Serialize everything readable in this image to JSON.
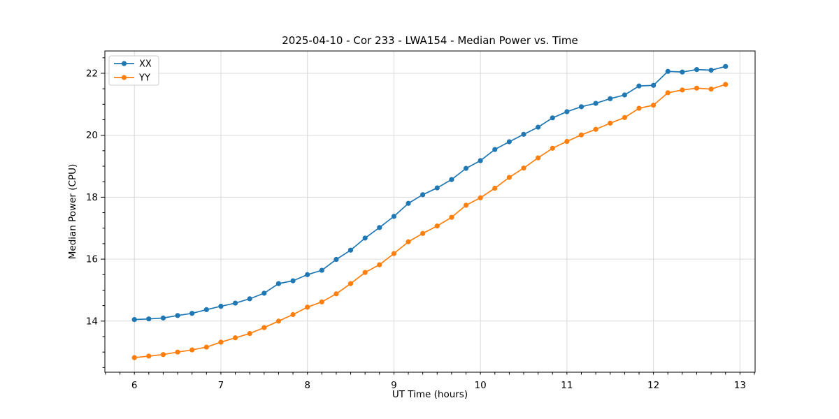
{
  "figure": {
    "title": "2025-04-10 - Cor 233 - LWA154 - Median Power vs. Time",
    "xlabel": "UT Time (hours)",
    "ylabel": "Median Power (CPU)"
  },
  "chart_data": {
    "type": "line",
    "title": "2025-04-10 - Cor 233 - LWA154 - Median Power vs. Time",
    "xlabel": "UT Time (hours)",
    "ylabel": "Median Power (CPU)",
    "x": [
      6.0,
      6.1667,
      6.3333,
      6.5,
      6.6667,
      6.8333,
      7.0,
      7.1667,
      7.3333,
      7.5,
      7.6667,
      7.8333,
      8.0,
      8.1667,
      8.3333,
      8.5,
      8.6667,
      8.8333,
      9.0,
      9.1667,
      9.3333,
      9.5,
      9.6667,
      9.8333,
      10.0,
      10.1667,
      10.3333,
      10.5,
      10.6667,
      10.8333,
      11.0,
      11.1667,
      11.3333,
      11.5,
      11.6667,
      11.8333,
      12.0,
      12.1667,
      12.3333,
      12.5,
      12.6667,
      12.8333
    ],
    "series": [
      {
        "name": "XX",
        "color": "#1f77b4",
        "marker": "circle",
        "values": [
          14.05,
          14.07,
          14.1,
          14.18,
          14.25,
          14.37,
          14.48,
          14.58,
          14.72,
          14.9,
          15.21,
          15.3,
          15.5,
          15.64,
          15.99,
          16.29,
          16.68,
          17.02,
          17.38,
          17.8,
          18.08,
          18.3,
          18.57,
          18.93,
          19.18,
          19.54,
          19.79,
          20.03,
          20.26,
          20.56,
          20.76,
          20.92,
          21.03,
          21.18,
          21.3,
          21.59,
          21.61,
          22.06,
          22.04,
          22.12,
          22.1,
          22.22
        ]
      },
      {
        "name": "YY",
        "color": "#ff7f0e",
        "marker": "circle",
        "values": [
          12.82,
          12.87,
          12.92,
          13.0,
          13.07,
          13.16,
          13.32,
          13.46,
          13.6,
          13.79,
          14.0,
          14.21,
          14.45,
          14.62,
          14.88,
          15.21,
          15.57,
          15.82,
          16.18,
          16.56,
          16.83,
          17.07,
          17.35,
          17.74,
          17.98,
          18.29,
          18.64,
          18.94,
          19.27,
          19.58,
          19.8,
          20.01,
          20.19,
          20.39,
          20.57,
          20.87,
          20.97,
          21.37,
          21.46,
          21.52,
          21.49,
          21.64
        ]
      }
    ],
    "xlim": [
      5.659,
      13.175
    ],
    "ylim": [
      12.35,
      22.72
    ],
    "xticks": [
      6,
      7,
      8,
      9,
      10,
      11,
      12,
      13
    ],
    "yticks": [
      14,
      16,
      18,
      20,
      22
    ],
    "x_minor_step": 0.166667,
    "y_minor_step": 0.5,
    "grid": true,
    "legend": {
      "position": "upper left",
      "entries": [
        "XX",
        "YY"
      ]
    }
  },
  "colors": {
    "series_xx": "#1f77b4",
    "series_yy": "#ff7f0e",
    "grid": "#d9d9d9",
    "axis": "#000000",
    "legend_border": "#cccccc",
    "background": "#ffffff"
  }
}
